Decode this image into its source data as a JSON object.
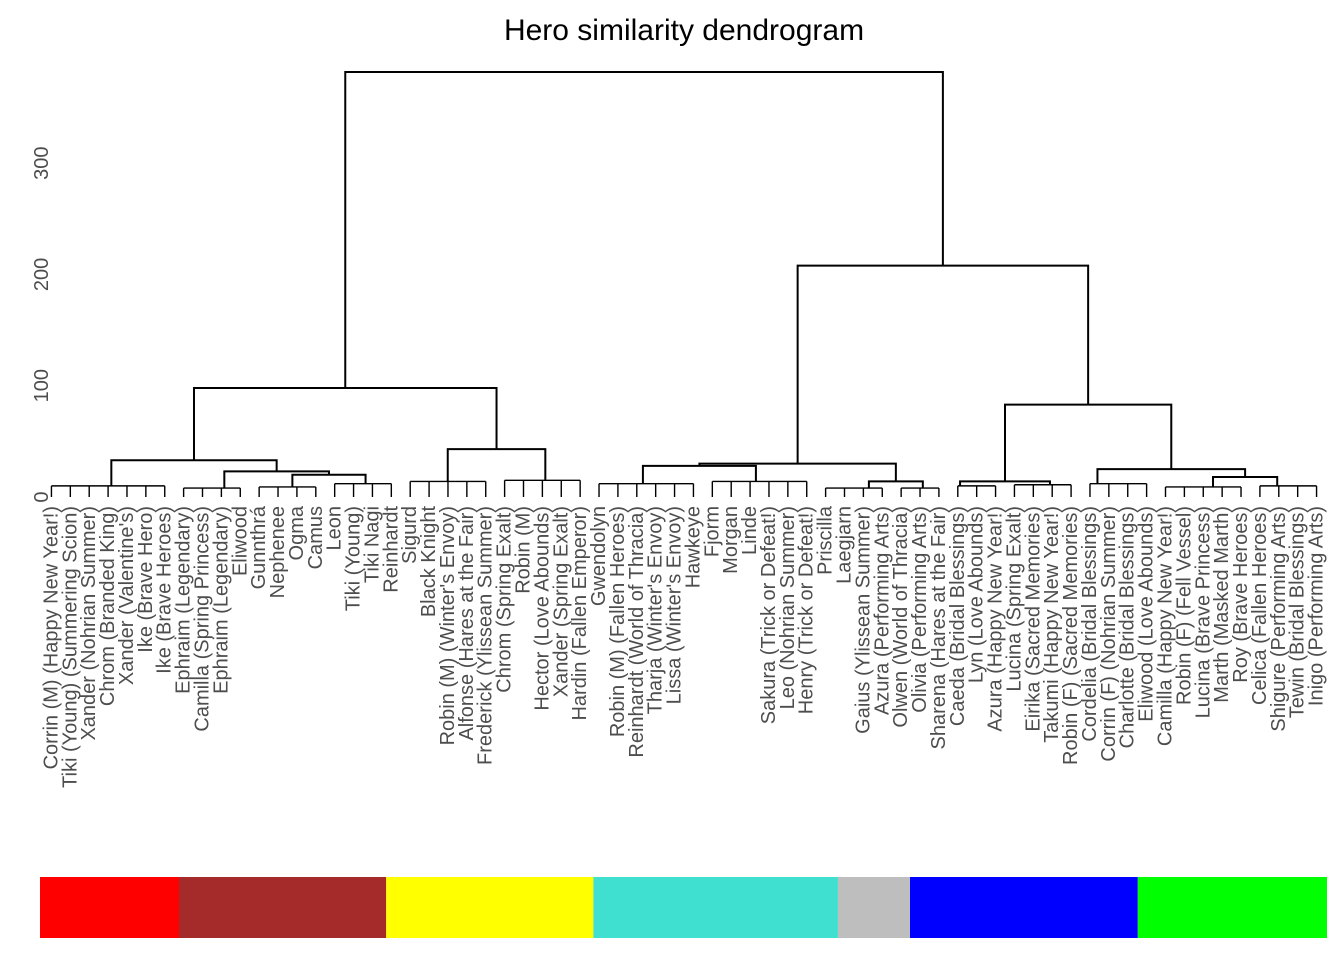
{
  "chart_data": {
    "type": "dendrogram",
    "title": "Hero similarity dendrogram",
    "xlabel": "",
    "ylabel": "",
    "ylim": [
      0,
      385
    ],
    "y_ticks": [
      0,
      100,
      200,
      300
    ],
    "y_tick_labels": [
      "0",
      "100",
      "200",
      "300"
    ],
    "grid": false,
    "merges": [
      {
        "name": "root",
        "height": 382,
        "left": "left-group",
        "right": "right-group"
      },
      {
        "name": "left-group",
        "height": 98,
        "left": "red-brown",
        "right": "yellow"
      },
      {
        "name": "right-group",
        "height": 208,
        "left": "cyan-gray",
        "right": "blue-green"
      },
      {
        "name": "red-brown",
        "height": 33,
        "left": "red",
        "right": "brown"
      },
      {
        "name": "brown",
        "height": 23,
        "left": "brown-a",
        "right": "brown-b"
      },
      {
        "name": "brown-b",
        "height": 20,
        "left": "brown-b1",
        "right": "brown-b2"
      },
      {
        "name": "yellow",
        "height": 43,
        "left": "yellow-a",
        "right": "yellow-b"
      },
      {
        "name": "cyan-gray",
        "height": 30,
        "left": "cyan",
        "right": "gray"
      },
      {
        "name": "cyan",
        "height": 28,
        "left": "cyan-a",
        "right": "cyan-b"
      },
      {
        "name": "gray",
        "height": 14,
        "left": "gray-a",
        "right": "gray-b"
      },
      {
        "name": "blue-green",
        "height": 83,
        "left": "blue",
        "right": "green"
      },
      {
        "name": "blue",
        "height": 14,
        "left": "blue-a",
        "right": "blue-b"
      },
      {
        "name": "green",
        "height": 25,
        "left": "green-a",
        "right": "green-b"
      },
      {
        "name": "green-b",
        "height": 18,
        "left": "green-b1",
        "right": "green-b2"
      }
    ],
    "cluster_bar": [
      {
        "name": "cluster-red",
        "color": "#FF0000",
        "start": 0,
        "end": 0.108
      },
      {
        "name": "cluster-brown",
        "color": "#A52A2A",
        "start": 0.108,
        "end": 0.269
      },
      {
        "name": "cluster-yellow",
        "color": "#FFFF00",
        "start": 0.269,
        "end": 0.43
      },
      {
        "name": "cluster-cyan",
        "color": "#40E0D0",
        "start": 0.43,
        "end": 0.62
      },
      {
        "name": "cluster-gray",
        "color": "#BEBEBE",
        "start": 0.62,
        "end": 0.676
      },
      {
        "name": "cluster-blue",
        "color": "#0000FF",
        "start": 0.676,
        "end": 0.853
      },
      {
        "name": "cluster-green",
        "color": "#00FF00",
        "start": 0.853,
        "end": 1.0
      }
    ],
    "leaf_labels": [
      "Corrin (M) (Happy New Year!)",
      "Tiki (Young) (Summering Scion)",
      "Xander (Nohrian Summer)",
      "Chrom (Branded King)",
      "Xander (Valentine's)",
      "Ike (Brave Hero)",
      "Ike (Brave Heroes)",
      "Ephraim (Legendary)",
      "Camilla (Spring Princess)",
      "Ephraim (Legendary)",
      "Eliwood",
      "Gunnthrá",
      "Nephenee",
      "Ogma",
      "Camus",
      "Leon",
      "Tiki (Young)",
      "Tiki Nagi",
      "Reinhardt",
      "Sigurd",
      "Black Knight",
      "Robin (M) (Winter's Envoy)",
      "Alfonse (Hares at the Fair)",
      "Frederick (Ylissean Summer)",
      "Chrom (Spring Exalt)",
      "Robin (M)",
      "Hector (Love Abounds)",
      "Xander (Spring Exalt)",
      "Hardin (Fallen Emperor)",
      "Gwendolyn",
      "Robin (M) (Fallen Heroes)",
      "Reinhardt (World of Thracia)",
      "Tharja (Winter's Envoy)",
      "Lissa (Winter's Envoy)",
      "Hawkeye",
      "Fjorm",
      "Morgan",
      "Linde",
      "Sakura (Trick or Defeat!)",
      "Leo (Nohrian Summer)",
      "Henry (Trick or Defeat!)",
      "Priscilla",
      "Laegjarn",
      "Gaius (Ylissean Summer)",
      "Azura (Performing Arts)",
      "Olwen (World of Thracia)",
      "Olivia (Performing Arts)",
      "Sharena (Hares at the Fair)",
      "Caeda (Bridal Blessings)",
      "Lyn (Love Abounds)",
      "Azura (Happy New Year!)",
      "Lucina (Spring Exalt)",
      "Eirika (Sacred Memories)",
      "Takumi (Happy New Year!)",
      "Robin (F) (Sacred Memories)",
      "Cordelia (Bridal Blessings)",
      "Corrin (F) (Nohrian Summer)",
      "Charlotte (Bridal Blessings)",
      "Eliwood (Love Abounds)",
      "Camilla (Happy New Year!)",
      "Robin (F) (Fell Vessel)",
      "Lucina (Brave Princess)",
      "Marth (Masked Marth)",
      "Roy (Brave Heroes)",
      "Celica (Fallen Heroes)",
      "Shigure (Performing Arts)",
      "Tewin (Bridal Blessings)",
      "Inigo (Performing Arts)"
    ]
  }
}
